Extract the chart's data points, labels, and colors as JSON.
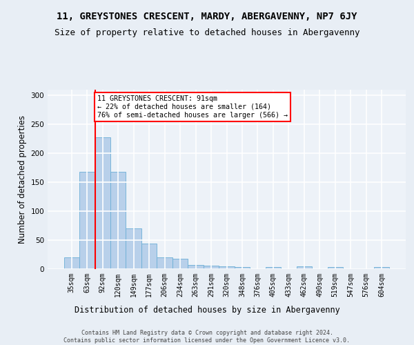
{
  "title1": "11, GREYSTONES CRESCENT, MARDY, ABERGAVENNY, NP7 6JY",
  "title2": "Size of property relative to detached houses in Abergavenny",
  "xlabel": "Distribution of detached houses by size in Abergavenny",
  "ylabel": "Number of detached properties",
  "categories": [
    "35sqm",
    "63sqm",
    "92sqm",
    "120sqm",
    "149sqm",
    "177sqm",
    "206sqm",
    "234sqm",
    "263sqm",
    "291sqm",
    "320sqm",
    "348sqm",
    "376sqm",
    "405sqm",
    "433sqm",
    "462sqm",
    "490sqm",
    "519sqm",
    "547sqm",
    "576sqm",
    "604sqm"
  ],
  "values": [
    20,
    168,
    228,
    168,
    70,
    44,
    20,
    18,
    7,
    6,
    5,
    3,
    0,
    3,
    0,
    5,
    0,
    3,
    0,
    0,
    3
  ],
  "bar_color": "#b8d0ea",
  "bar_edge_color": "#6baed6",
  "annotation_text": "11 GREYSTONES CRESCENT: 91sqm\n← 22% of detached houses are smaller (164)\n76% of semi-detached houses are larger (566) →",
  "annotation_box_color": "white",
  "annotation_box_edge": "red",
  "vline_color": "red",
  "footer": "Contains HM Land Registry data © Crown copyright and database right 2024.\nContains public sector information licensed under the Open Government Licence v3.0.",
  "ylim": [
    0,
    310
  ],
  "yticks": [
    0,
    50,
    100,
    150,
    200,
    250,
    300
  ],
  "bg_color": "#e8eef5",
  "plot_bg_color": "#edf2f8",
  "grid_color": "white",
  "title1_fontsize": 10,
  "title2_fontsize": 9,
  "tick_fontsize": 7,
  "ylabel_fontsize": 8.5,
  "xlabel_fontsize": 8.5,
  "footer_fontsize": 6
}
